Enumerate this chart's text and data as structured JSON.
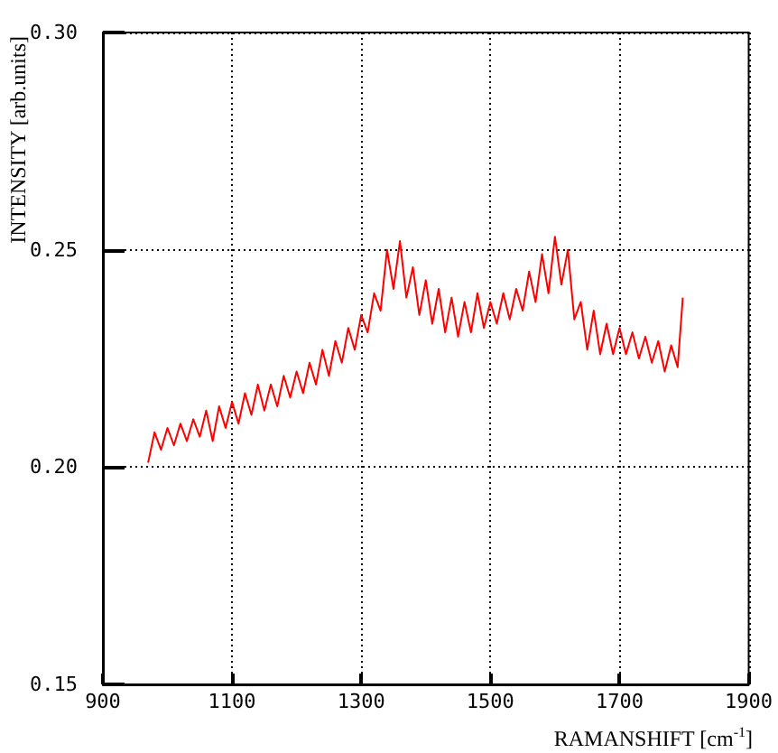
{
  "chart_data": {
    "type": "line",
    "xlabel": "RAMANSHIFT [cm$^{-1}$]",
    "ylabel": "INTENSITY [arb.units]",
    "x": [
      970,
      980,
      990,
      1000,
      1010,
      1020,
      1030,
      1040,
      1050,
      1060,
      1070,
      1080,
      1090,
      1100,
      1110,
      1120,
      1130,
      1140,
      1150,
      1160,
      1170,
      1180,
      1190,
      1200,
      1210,
      1220,
      1230,
      1240,
      1250,
      1260,
      1270,
      1280,
      1290,
      1300,
      1310,
      1320,
      1330,
      1340,
      1350,
      1360,
      1370,
      1380,
      1390,
      1400,
      1410,
      1420,
      1430,
      1440,
      1450,
      1460,
      1470,
      1480,
      1490,
      1500,
      1510,
      1520,
      1530,
      1540,
      1550,
      1560,
      1570,
      1580,
      1590,
      1600,
      1610,
      1620,
      1630,
      1640,
      1650,
      1660,
      1670,
      1680,
      1690,
      1700,
      1710,
      1720,
      1730,
      1740,
      1750,
      1760,
      1770,
      1780,
      1790,
      1798
    ],
    "series": [
      {
        "color": "#ff0000",
        "values": [
          0.201,
          0.208,
          0.204,
          0.209,
          0.205,
          0.21,
          0.206,
          0.211,
          0.207,
          0.213,
          0.206,
          0.214,
          0.209,
          0.215,
          0.21,
          0.217,
          0.212,
          0.219,
          0.213,
          0.219,
          0.214,
          0.221,
          0.216,
          0.222,
          0.217,
          0.224,
          0.219,
          0.227,
          0.221,
          0.229,
          0.224,
          0.232,
          0.227,
          0.235,
          0.231,
          0.24,
          0.236,
          0.25,
          0.241,
          0.252,
          0.239,
          0.246,
          0.235,
          0.243,
          0.233,
          0.241,
          0.231,
          0.239,
          0.23,
          0.238,
          0.231,
          0.24,
          0.232,
          0.238,
          0.233,
          0.24,
          0.234,
          0.241,
          0.236,
          0.245,
          0.238,
          0.249,
          0.24,
          0.253,
          0.242,
          0.25,
          0.234,
          0.238,
          0.227,
          0.236,
          0.226,
          0.233,
          0.226,
          0.232,
          0.226,
          0.231,
          0.225,
          0.23,
          0.224,
          0.229,
          0.222,
          0.228,
          0.223,
          0.239
        ]
      }
    ],
    "xlim": [
      900,
      1900
    ],
    "xticks": [
      900,
      1100,
      1300,
      1500,
      1700,
      1900
    ],
    "ylim": [
      0.15,
      0.3
    ],
    "yticks": [
      {
        "value": 0.15,
        "label": "0.15"
      },
      {
        "value": 0.2,
        "label": "0.20"
      },
      {
        "value": 0.25,
        "label": "0.25"
      },
      {
        "value": 0.3,
        "label": "0.30"
      }
    ],
    "grid": true,
    "marker": "none",
    "line_style": "solid"
  }
}
